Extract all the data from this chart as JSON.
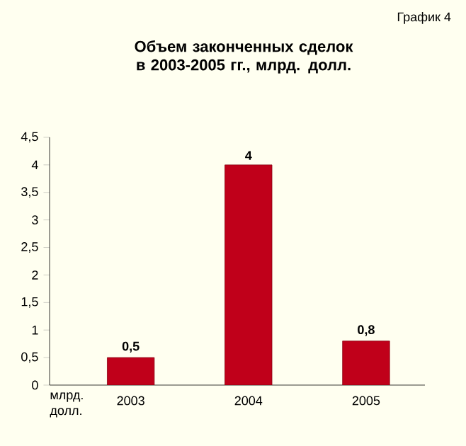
{
  "chart_data": {
    "type": "bar",
    "title": "Объем законченных сделок в 2003-2005 гг., млрд. долл.",
    "annotations": [
      "График 4",
      "млрд. долл."
    ],
    "categories": [
      "2003",
      "2004",
      "2005"
    ],
    "values": [
      0.5,
      4,
      0.8
    ],
    "value_labels": [
      "0,5",
      "4",
      "0,8"
    ],
    "color": "#c0001a",
    "ylim": [
      0,
      4.5
    ],
    "yticks": [
      0,
      {
        "value": 0.5,
        "label": "0,5"
      },
      1,
      {
        "value": 1.5,
        "label": "1,5"
      },
      2,
      {
        "value": 2.5,
        "label": "2,5"
      },
      3,
      {
        "value": 3.5,
        "label": "3,5"
      },
      4,
      {
        "value": 4.5,
        "label": "4,5"
      }
    ],
    "grid": false
  }
}
